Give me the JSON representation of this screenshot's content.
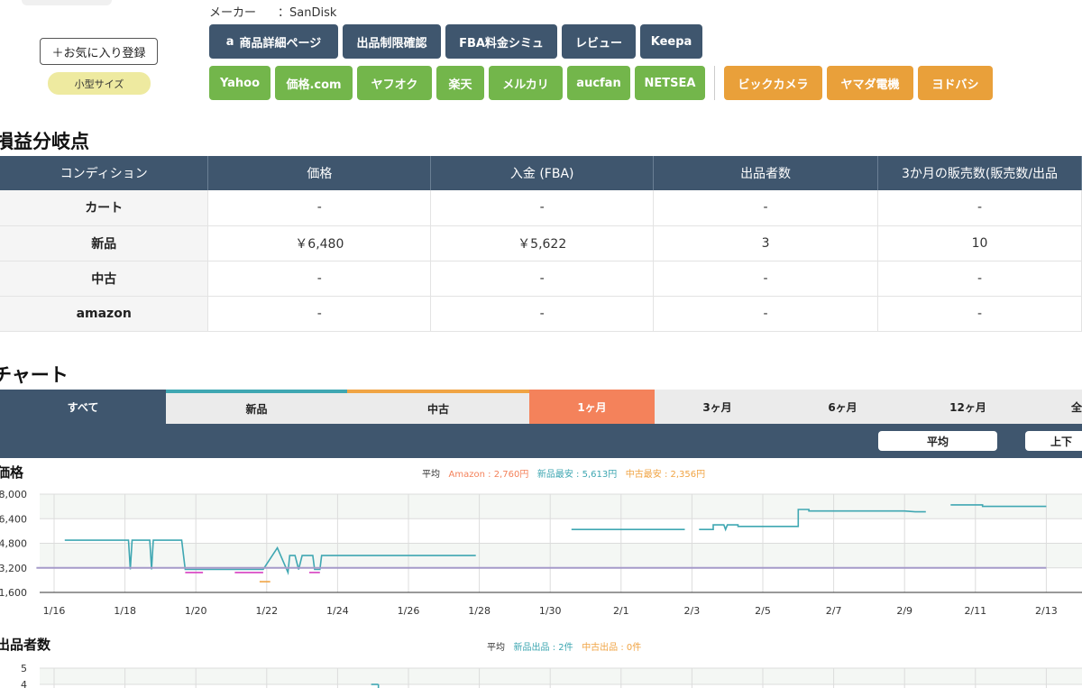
{
  "product": {
    "maker_label": "メーカー",
    "maker_value": "：SanDisk",
    "favorite_label": "＋お気に入り登録",
    "size_badge": "小型サイズ"
  },
  "links": {
    "row1": [
      "商品詳細ページ",
      "出品制限確認",
      "FBA料金シミュ",
      "レビュー",
      "Keepa"
    ],
    "row2_green": [
      "Yahoo",
      "価格.com",
      "ヤフオク",
      "楽天",
      "メルカリ",
      "aucfan",
      "NETSEA"
    ],
    "row2_orange": [
      "ビックカメラ",
      "ヤマダ電機",
      "ヨドバシ"
    ]
  },
  "breakeven": {
    "title": "損益分岐点",
    "headers": [
      "コンディション",
      "価格",
      "入金 (FBA)",
      "出品者数",
      "3か月の販売数(販売数/出品"
    ],
    "rows": [
      [
        "カート",
        "-",
        "-",
        "-",
        "-"
      ],
      [
        "新品",
        "￥6,480",
        "￥5,622",
        "3",
        "10"
      ],
      [
        "中古",
        "-",
        "-",
        "-",
        "-"
      ],
      [
        "amazon",
        "-",
        "-",
        "-",
        "-"
      ]
    ]
  },
  "chart_section": {
    "title": "チャート",
    "tabs": [
      "すべて",
      "新品",
      "中古",
      "1ヶ月",
      "3ヶ月",
      "6ヶ月",
      "12ヶ月",
      "全"
    ],
    "pills": [
      "平均",
      "上下"
    ]
  },
  "colors": {
    "navy": "#3f566e",
    "new": "#3fa7b2",
    "used": "#f0a444",
    "amazon": "#f4825b",
    "green": "#73b64b",
    "orange": "#e9a03a"
  },
  "price_legend": {
    "prefix": "平均",
    "amazon": "Amazon : 2,760円",
    "new": "新品最安 : 5,613円",
    "used": "中古最安 : 2,356円"
  },
  "seller_legend": {
    "prefix": "平均",
    "new": "新品出品 : 2件",
    "used": "中古出品 : 0件"
  },
  "chart_data": [
    {
      "type": "line",
      "title": "価格",
      "y_ticks": [
        "8,000",
        "6,400",
        "4,800",
        "3,200",
        "1,600"
      ],
      "ylim": [
        1600,
        8000
      ],
      "x_ticks": [
        "1/16",
        "1/18",
        "1/20",
        "1/22",
        "1/24",
        "1/26",
        "1/28",
        "1/30",
        "2/1",
        "2/3",
        "2/5",
        "2/7",
        "2/9",
        "2/11",
        "2/13"
      ],
      "series": [
        {
          "name": "新品最安",
          "points": [
            [
              16.3,
              5000
            ],
            [
              18.1,
              5000
            ],
            [
              18.15,
              3100
            ],
            [
              18.2,
              5000
            ],
            [
              18.7,
              5000
            ],
            [
              18.75,
              3100
            ],
            [
              18.8,
              5000
            ],
            [
              19.5,
              5000
            ],
            [
              19.6,
              5000
            ],
            [
              19.7,
              3100
            ],
            [
              21.9,
              3100
            ],
            [
              22.3,
              4500
            ],
            [
              22.6,
              2900
            ],
            [
              22.65,
              4000
            ],
            [
              22.8,
              4000
            ],
            [
              22.9,
              3100
            ],
            [
              23.0,
              4000
            ],
            [
              23.3,
              4000
            ],
            [
              23.35,
              3100
            ],
            [
              23.5,
              3100
            ],
            [
              23.55,
              4000
            ],
            [
              27.9,
              4000
            ],
            [
              null,
              null
            ],
            [
              30.6,
              5700
            ],
            [
              33.8,
              5700
            ],
            [
              null,
              null
            ],
            [
              34.2,
              5700
            ],
            [
              34.6,
              5700
            ],
            [
              34.6,
              6000
            ],
            [
              34.9,
              6000
            ],
            [
              34.95,
              5700
            ],
            [
              35.0,
              6000
            ],
            [
              35.3,
              6000
            ],
            [
              35.3,
              5900
            ],
            [
              37.0,
              5900
            ],
            [
              37.0,
              7000
            ],
            [
              37.3,
              7000
            ],
            [
              37.3,
              6900
            ],
            [
              40.0,
              6900
            ],
            [
              40.3,
              6850
            ],
            [
              40.6,
              6850
            ],
            [
              null,
              null
            ],
            [
              41.3,
              7300
            ],
            [
              42.2,
              7300
            ],
            [
              42.2,
              7200
            ],
            [
              44.0,
              7200
            ]
          ]
        },
        {
          "name": "中古最安",
          "points": [
            [
              21.8,
              2300
            ],
            [
              22.1,
              2300
            ]
          ]
        },
        {
          "name": "Amazon",
          "points": [
            [
              19.7,
              2900
            ],
            [
              20.2,
              2900
            ],
            [
              null,
              null
            ],
            [
              21.1,
              2900
            ],
            [
              21.9,
              2900
            ],
            [
              null,
              null
            ],
            [
              23.2,
              2900
            ],
            [
              23.5,
              2900
            ]
          ]
        },
        {
          "name": "平均",
          "points": [
            [
              15.5,
              3200
            ],
            [
              44.0,
              3200
            ]
          ]
        }
      ]
    },
    {
      "type": "line",
      "title": "出品者数",
      "y_ticks": [
        "5",
        "4"
      ],
      "ylim": [
        0,
        5
      ],
      "series": [
        {
          "name": "新品出品",
          "points": [
            [
              25.05,
              4
            ]
          ]
        }
      ]
    }
  ]
}
